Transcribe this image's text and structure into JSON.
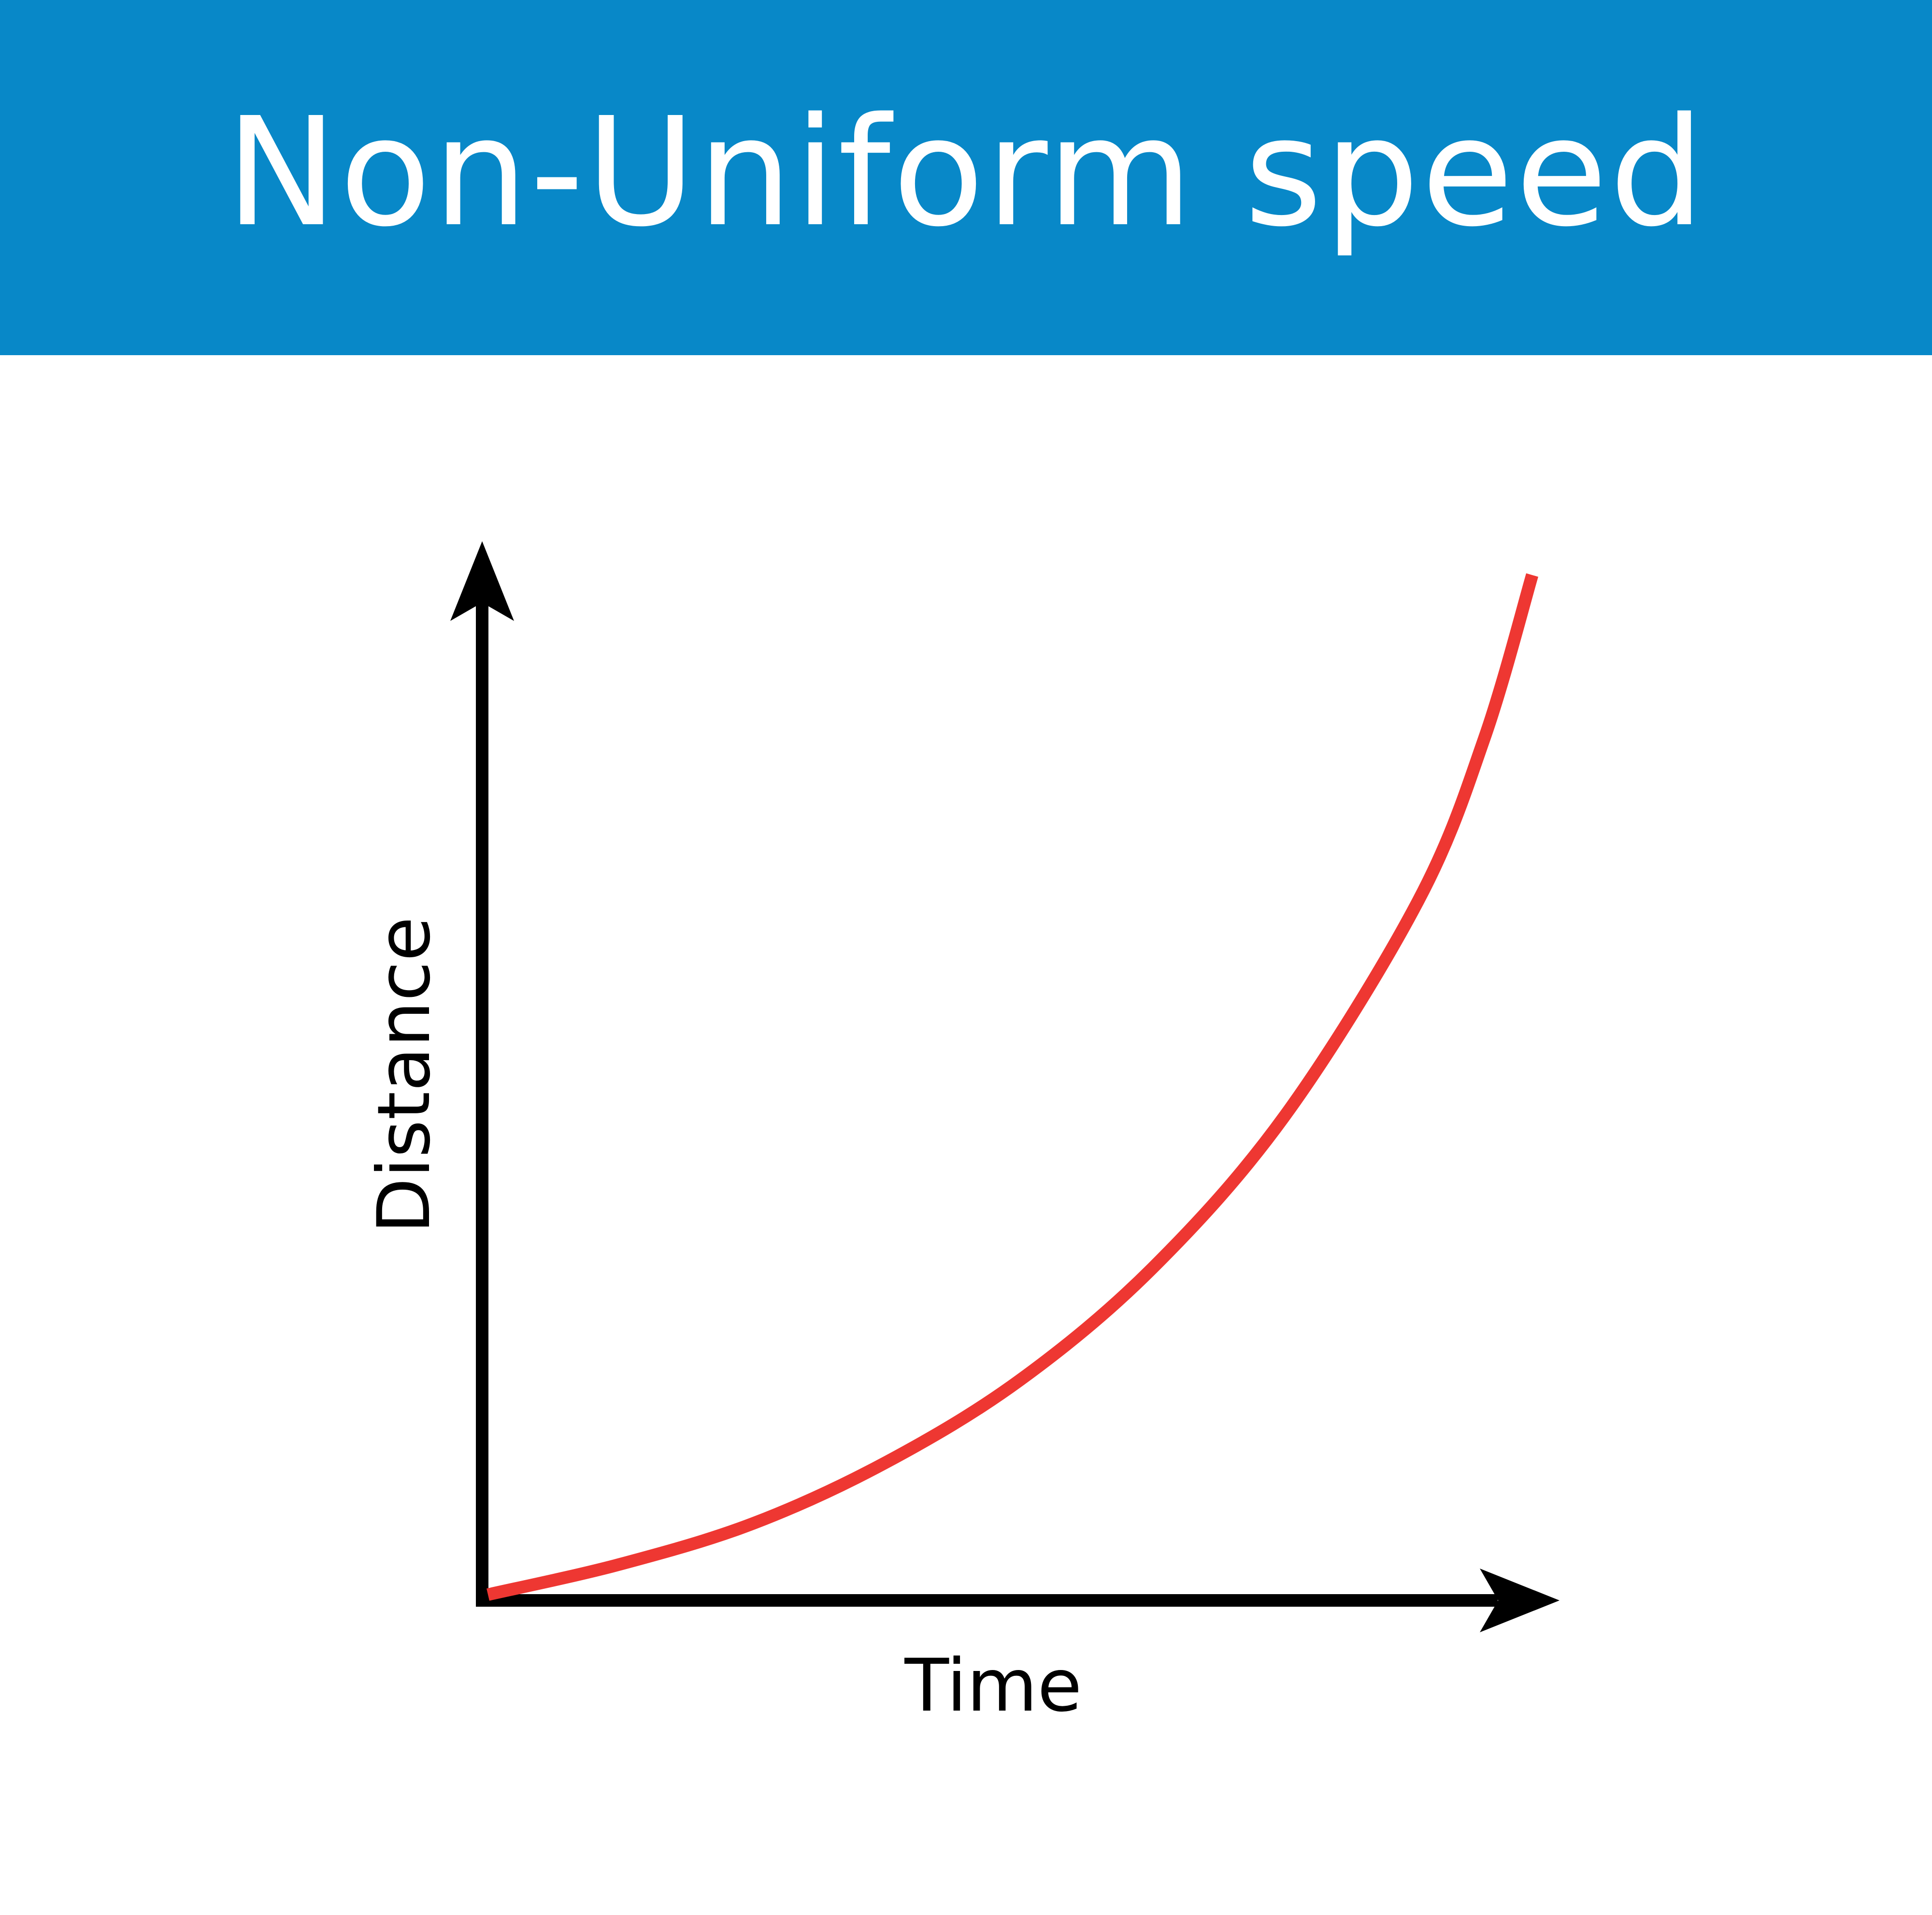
{
  "header": {
    "title": "Non-Uniform speed"
  },
  "colors": {
    "banner": "#0888c8",
    "curve": "#ee3732",
    "axis": "#000000"
  },
  "chart_data": {
    "type": "line",
    "title": "Non-Uniform speed",
    "xlabel": "Time",
    "ylabel": "Distance",
    "xlim": [
      0,
      1
    ],
    "ylim": [
      0,
      1
    ],
    "grid": false,
    "legend": "none",
    "ticks": false,
    "series": [
      {
        "curve_shape": "increasing-concave-up",
        "x": [
          0,
          0.1,
          0.2,
          0.3,
          0.4,
          0.5,
          0.6,
          0.7,
          0.75,
          0.786
        ],
        "y": [
          0,
          0.03,
          0.07,
          0.13,
          0.21,
          0.32,
          0.47,
          0.68,
          0.84,
          1.0
        ]
      }
    ]
  }
}
